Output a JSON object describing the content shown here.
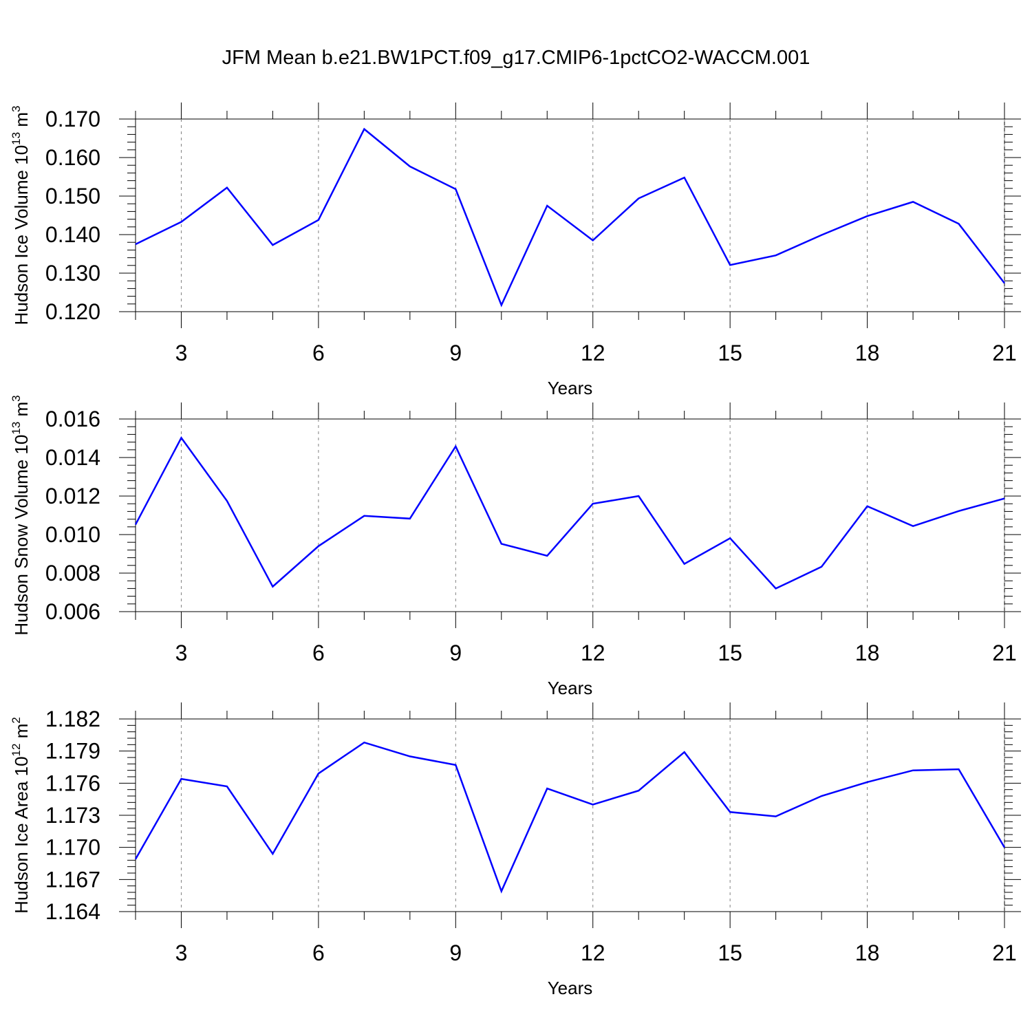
{
  "title": "JFM Mean b.e21.BW1PCT.f09_g17.CMIP6-1pctCO2-WACCM.001",
  "line_color": "#0000ff",
  "chart_data": [
    {
      "type": "line",
      "ylabel": "Hudson Ice Volume 10",
      "ylabel_exp": "13",
      "ylabel_unit": " m",
      "ylabel_unit_exp": "3",
      "xlabel": "Years",
      "xlim": [
        2,
        21
      ],
      "ylim": [
        0.12,
        0.17
      ],
      "xticks": [
        "3",
        "6",
        "9",
        "12",
        "15",
        "18",
        "21"
      ],
      "yticks": [
        "0.120",
        "0.130",
        "0.140",
        "0.150",
        "0.160",
        "0.170"
      ],
      "x": [
        2,
        3,
        4,
        5,
        6,
        7,
        8,
        9,
        10,
        11,
        12,
        13,
        14,
        15,
        16,
        17,
        18,
        19,
        20,
        21
      ],
      "values": [
        0.1375,
        0.1433,
        0.1522,
        0.1373,
        0.1438,
        0.1674,
        0.1577,
        0.1518,
        0.1217,
        0.1475,
        0.1385,
        0.1494,
        0.1548,
        0.1321,
        0.1346,
        0.1399,
        0.1448,
        0.1485,
        0.1428,
        0.1274
      ]
    },
    {
      "type": "line",
      "ylabel": "Hudson Snow Volume 10",
      "ylabel_exp": "13",
      "ylabel_unit": " m",
      "ylabel_unit_exp": "3",
      "xlabel": "Years",
      "xlim": [
        2,
        21
      ],
      "ylim": [
        0.006,
        0.016
      ],
      "xticks": [
        "3",
        "6",
        "9",
        "12",
        "15",
        "18",
        "21"
      ],
      "yticks": [
        "0.006",
        "0.008",
        "0.010",
        "0.012",
        "0.014",
        "0.016"
      ],
      "x": [
        2,
        3,
        4,
        5,
        6,
        7,
        8,
        9,
        10,
        11,
        12,
        13,
        14,
        15,
        16,
        17,
        18,
        19,
        20,
        21
      ],
      "values": [
        0.01052,
        0.01502,
        0.01175,
        0.0073,
        0.0094,
        0.01097,
        0.01083,
        0.01458,
        0.00952,
        0.0089,
        0.0116,
        0.012,
        0.00848,
        0.00981,
        0.0072,
        0.00833,
        0.01147,
        0.01044,
        0.01122,
        0.01187
      ]
    },
    {
      "type": "line",
      "ylabel": "Hudson Ice Area 10",
      "ylabel_exp": "12",
      "ylabel_unit": " m",
      "ylabel_unit_exp": "2",
      "xlabel": "Years",
      "xlim": [
        2,
        21
      ],
      "ylim": [
        1.164,
        1.182
      ],
      "xticks": [
        "3",
        "6",
        "9",
        "12",
        "15",
        "18",
        "21"
      ],
      "yticks": [
        "1.164",
        "1.167",
        "1.170",
        "1.173",
        "1.176",
        "1.179",
        "1.182"
      ],
      "x": [
        2,
        3,
        4,
        5,
        6,
        7,
        8,
        9,
        10,
        11,
        12,
        13,
        14,
        15,
        16,
        17,
        18,
        19,
        20,
        21
      ],
      "values": [
        1.1689,
        1.1764,
        1.1757,
        1.1694,
        1.1769,
        1.1798,
        1.1785,
        1.1777,
        1.1659,
        1.1755,
        1.174,
        1.1753,
        1.1789,
        1.1733,
        1.1729,
        1.1748,
        1.1761,
        1.1772,
        1.1773,
        1.17
      ]
    }
  ]
}
